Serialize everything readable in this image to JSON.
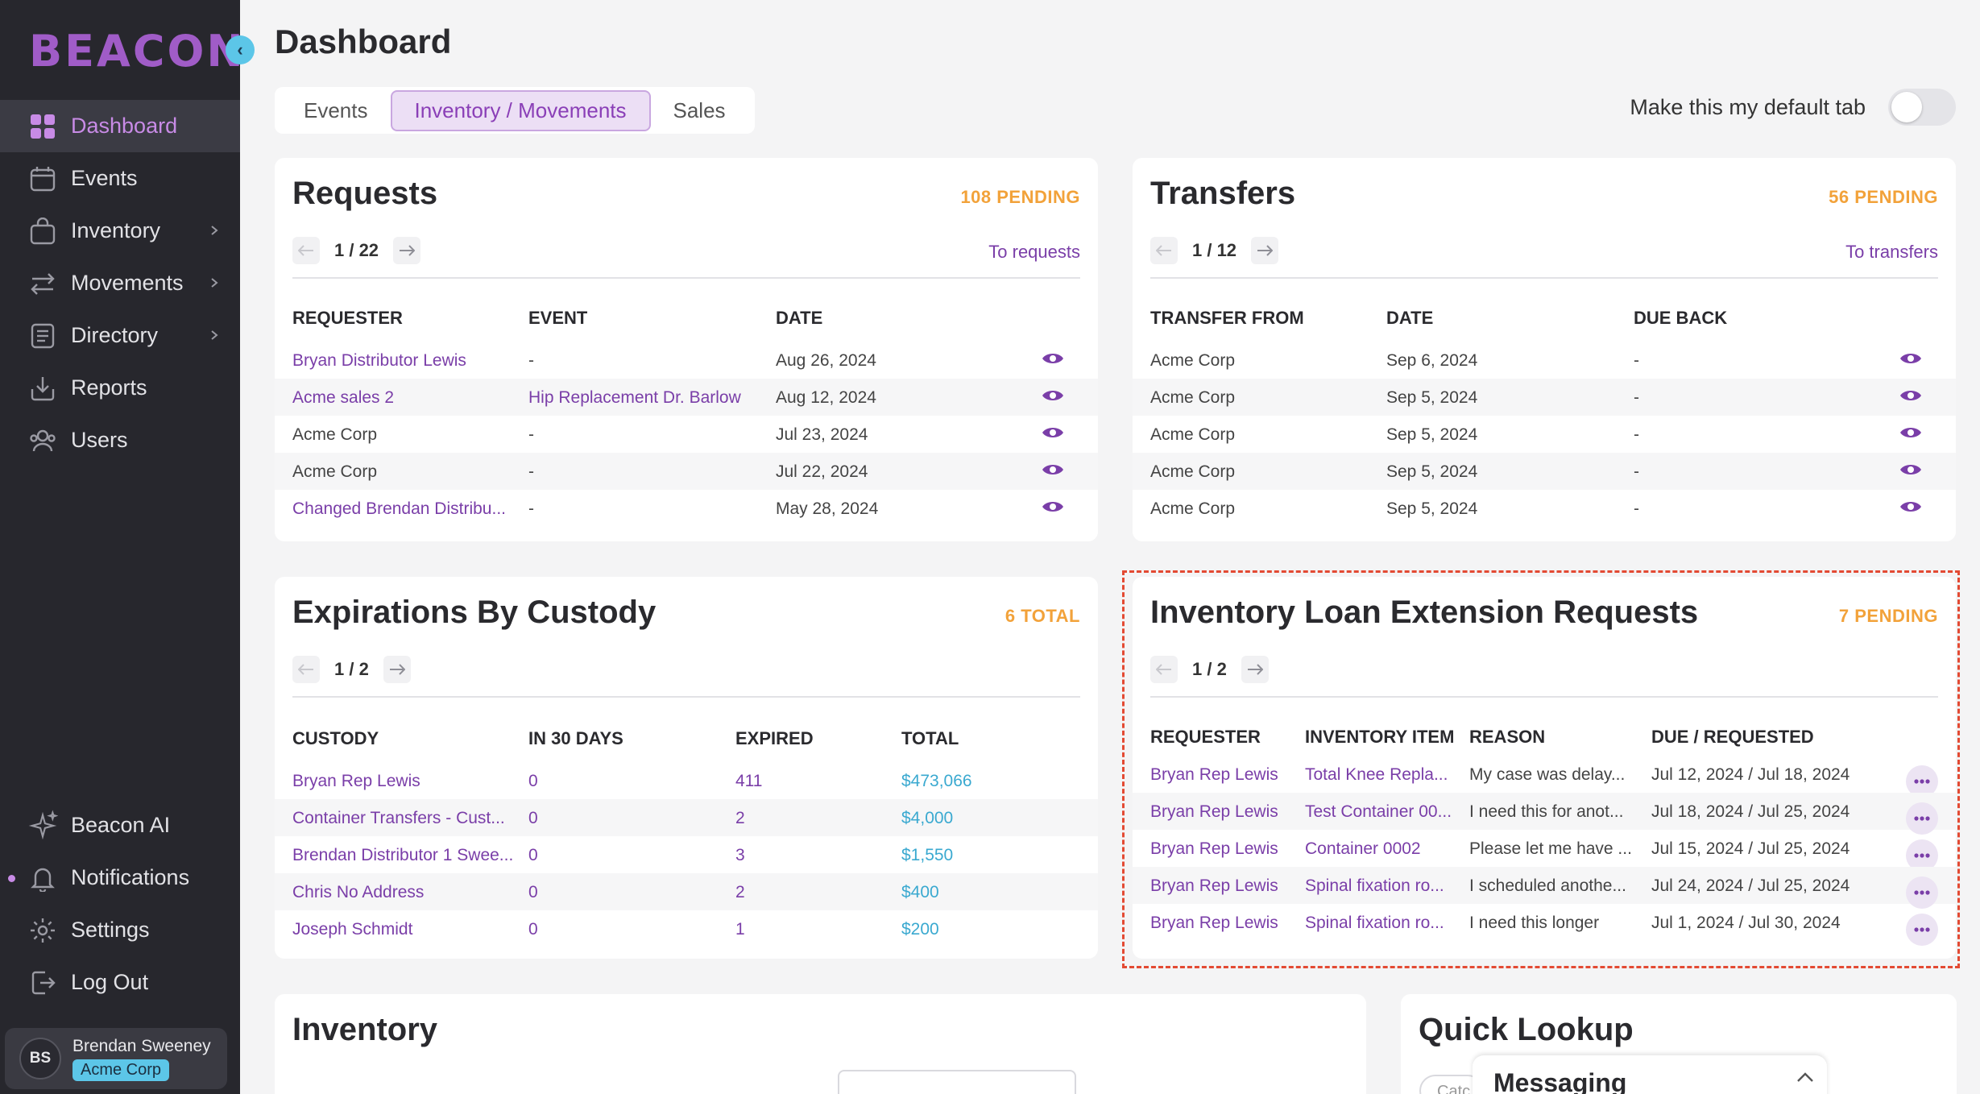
{
  "sidebar": {
    "logo": "BEACON",
    "nav": [
      {
        "label": "Dashboard",
        "icon": "grid-icon",
        "active": true
      },
      {
        "label": "Events",
        "icon": "calendar-icon"
      },
      {
        "label": "Inventory",
        "icon": "bag-icon",
        "chevron": true
      },
      {
        "label": "Movements",
        "icon": "arrows-icon",
        "chevron": true
      },
      {
        "label": "Directory",
        "icon": "list-icon",
        "chevron": true
      },
      {
        "label": "Reports",
        "icon": "download-icon"
      },
      {
        "label": "Users",
        "icon": "users-icon"
      }
    ],
    "bottom": [
      {
        "label": "Beacon AI",
        "icon": "sparkle-icon"
      },
      {
        "label": "Notifications",
        "icon": "bell-icon"
      },
      {
        "label": "Settings",
        "icon": "gear-icon"
      },
      {
        "label": "Log Out",
        "icon": "logout-icon"
      }
    ],
    "user": {
      "initials": "BS",
      "name": "Brendan Sweeney",
      "org": "Acme Corp"
    }
  },
  "header": {
    "title": "Dashboard",
    "tabs": [
      "Events",
      "Inventory / Movements",
      "Sales"
    ],
    "default_tab_label": "Make this my default tab"
  },
  "requests": {
    "title": "Requests",
    "pending": "108 PENDING",
    "page": "1 / 22",
    "link": "To requests",
    "columns": [
      "REQUESTER",
      "EVENT",
      "DATE"
    ],
    "rows": [
      [
        "Bryan Distributor Lewis",
        "-",
        "Aug 26, 2024"
      ],
      [
        "Acme sales 2",
        "Hip Replacement Dr. Barlow",
        "Aug 12, 2024"
      ],
      [
        "Acme Corp",
        "-",
        "Jul 23, 2024"
      ],
      [
        "Acme Corp",
        "-",
        "Jul 22, 2024"
      ],
      [
        "Changed Brendan Distribu...",
        "-",
        "May 28, 2024"
      ]
    ]
  },
  "transfers": {
    "title": "Transfers",
    "pending": "56 PENDING",
    "page": "1 / 12",
    "link": "To transfers",
    "columns": [
      "TRANSFER FROM",
      "DATE",
      "DUE BACK"
    ],
    "rows": [
      [
        "Acme Corp",
        "Sep 6, 2024",
        "-"
      ],
      [
        "Acme Corp",
        "Sep 5, 2024",
        "-"
      ],
      [
        "Acme Corp",
        "Sep 5, 2024",
        "-"
      ],
      [
        "Acme Corp",
        "Sep 5, 2024",
        "-"
      ],
      [
        "Acme Corp",
        "Sep 5, 2024",
        "-"
      ]
    ]
  },
  "expirations": {
    "title": "Expirations By Custody",
    "pending": "6 TOTAL",
    "page": "1 / 2",
    "columns": [
      "CUSTODY",
      "IN 30 DAYS",
      "EXPIRED",
      "TOTAL"
    ],
    "rows": [
      [
        "Bryan Rep Lewis",
        "0",
        "411",
        "$473,066"
      ],
      [
        "Container Transfers - Cust...",
        "0",
        "2",
        "$4,000"
      ],
      [
        "Brendan Distributor 1 Swee...",
        "0",
        "3",
        "$1,550"
      ],
      [
        "Chris No Address",
        "0",
        "2",
        "$400"
      ],
      [
        "Joseph Schmidt",
        "0",
        "1",
        "$200"
      ]
    ]
  },
  "extensions": {
    "title": "Inventory Loan Extension Requests",
    "pending": "7 PENDING",
    "page": "1 / 2",
    "columns": [
      "REQUESTER",
      "INVENTORY ITEM",
      "REASON",
      "DUE / REQUESTED"
    ],
    "rows": [
      [
        "Bryan Rep Lewis",
        "Total Knee Repla...",
        "My case was delay...",
        "Jul 12, 2024 / Jul 18, 2024"
      ],
      [
        "Bryan Rep Lewis",
        "Test Container 00...",
        "I need this for anot...",
        "Jul 18, 2024 / Jul 25, 2024"
      ],
      [
        "Bryan Rep Lewis",
        "Container 0002",
        "Please let me have ...",
        "Jul 15, 2024 / Jul 25, 2024"
      ],
      [
        "Bryan Rep Lewis",
        "Spinal fixation ro...",
        "I scheduled anothe...",
        "Jul 24, 2024 / Jul 25, 2024"
      ],
      [
        "Bryan Rep Lewis",
        "Spinal fixation ro...",
        "I need this longer",
        "Jul 1, 2024 / Jul 30, 2024"
      ]
    ]
  },
  "inventory": {
    "title": "Inventory"
  },
  "quick_lookup": {
    "title": "Quick Lookup",
    "chip": "Catc"
  },
  "messaging": {
    "title": "Messaging"
  },
  "colors": {
    "accent": "#8a3fb7",
    "pending": "#f2a23a",
    "sidebar": "#27272d",
    "teal": "#3aa9d0"
  }
}
